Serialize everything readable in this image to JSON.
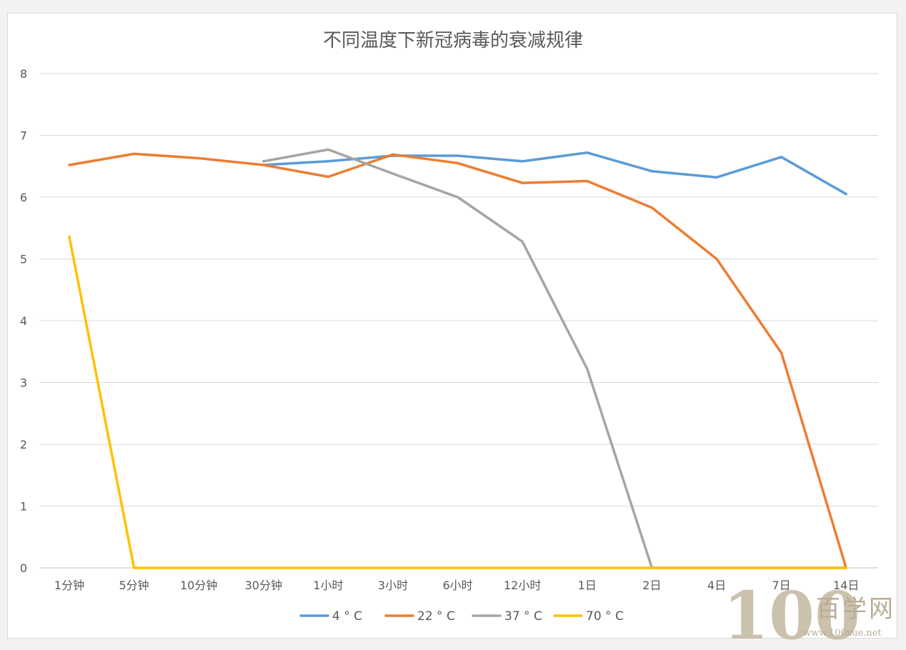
{
  "chart_data": {
    "type": "line",
    "title": "不同温度下新冠病毒的衰减规律",
    "xlabel": "",
    "ylabel": "",
    "categories": [
      "1分钟",
      "5分钟",
      "10分钟",
      "30分钟",
      "1小时",
      "3小时",
      "6小时",
      "12小时",
      "1日",
      "2日",
      "4日",
      "7日",
      "14日"
    ],
    "ylim": [
      0,
      8
    ],
    "yticks": [
      0,
      1,
      2,
      3,
      4,
      5,
      6,
      7,
      8
    ],
    "grid": true,
    "legend_position": "bottom",
    "series": [
      {
        "name": "4 ° C",
        "color": "#5b9bd5",
        "values": [
          null,
          null,
          null,
          6.52,
          6.58,
          6.67,
          6.67,
          6.58,
          6.72,
          6.42,
          6.32,
          6.65,
          6.05
        ]
      },
      {
        "name": "22 ° C",
        "color": "#ed7d31",
        "values": [
          6.52,
          6.7,
          6.63,
          6.52,
          6.33,
          6.69,
          6.55,
          6.23,
          6.26,
          5.83,
          5.0,
          3.48,
          0
        ]
      },
      {
        "name": "37 ° C",
        "color": "#a5a5a5",
        "values": [
          null,
          null,
          null,
          6.58,
          6.77,
          6.38,
          6.0,
          5.28,
          3.22,
          0,
          0,
          0,
          0
        ]
      },
      {
        "name": "70 ° C",
        "color": "#ffc000",
        "values": [
          5.36,
          0,
          0,
          0,
          0,
          0,
          0,
          0,
          0,
          0,
          0,
          0,
          0
        ]
      }
    ]
  },
  "watermark": {
    "logo_number": "100",
    "site_name": "百学网",
    "url": "www.100xue.net"
  }
}
